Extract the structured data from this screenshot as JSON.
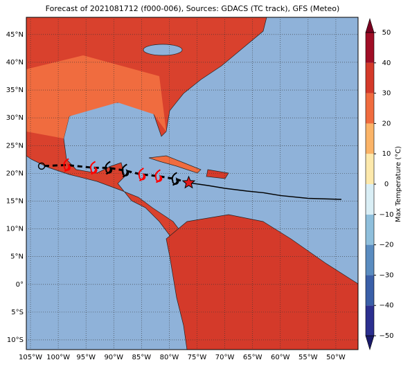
{
  "title": "Forecast of 2021081712 (f000-006), Sources: GDACS (TC track), GFS (Meteo)",
  "map": {
    "xlim": [
      -105.75,
      -46
    ],
    "ylim": [
      -11.75,
      48.1
    ],
    "xticks": [
      {
        "value": -105,
        "label": "105°W"
      },
      {
        "value": -100,
        "label": "100°W"
      },
      {
        "value": -95,
        "label": "95°W"
      },
      {
        "value": -90,
        "label": "90°W"
      },
      {
        "value": -85,
        "label": "85°W"
      },
      {
        "value": -80,
        "label": "80°W"
      },
      {
        "value": -75,
        "label": "75°W"
      },
      {
        "value": -70,
        "label": "70°W"
      },
      {
        "value": -65,
        "label": "65°W"
      },
      {
        "value": -60,
        "label": "60°W"
      },
      {
        "value": -55,
        "label": "55°W"
      },
      {
        "value": -50,
        "label": "50°W"
      }
    ],
    "yticks": [
      {
        "value": 45,
        "label": "45°N"
      },
      {
        "value": 40,
        "label": "40°N"
      },
      {
        "value": 35,
        "label": "35°N"
      },
      {
        "value": 30,
        "label": "30°N"
      },
      {
        "value": 25,
        "label": "25°N"
      },
      {
        "value": 20,
        "label": "20°N"
      },
      {
        "value": 15,
        "label": "15°N"
      },
      {
        "value": 10,
        "label": "10°N"
      },
      {
        "value": 5,
        "label": "5°N"
      },
      {
        "value": 0,
        "label": "0°"
      },
      {
        "value": -5,
        "label": "5°S"
      },
      {
        "value": -10,
        "label": "10°S"
      }
    ]
  },
  "track": {
    "past": {
      "lon": [
        -49,
        -55,
        -60,
        -63,
        -66,
        -70,
        -73,
        -76.5
      ],
      "lat": [
        15.3,
        15.5,
        16,
        16.5,
        16.8,
        17.3,
        17.8,
        18.3
      ]
    },
    "forecast": {
      "lon": [
        -76.5,
        -79,
        -82,
        -85,
        -88,
        -91,
        -93.7,
        -98.5,
        -103
      ],
      "lat": [
        18.3,
        19,
        19.5,
        19.8,
        20.5,
        21,
        21,
        21.5,
        21.3
      ],
      "colors": [
        "#000000",
        "#000000",
        "#ff0000",
        "#ff0000",
        "#000000",
        "#000000",
        "#ff0000",
        "#ff0000",
        "#000000"
      ]
    }
  },
  "colorbar": {
    "label": "Max Temperature (°C)",
    "lim": [
      -50,
      50
    ],
    "ticks": [
      {
        "value": -50,
        "label": "−50"
      },
      {
        "value": -40,
        "label": "−40"
      },
      {
        "value": -30,
        "label": "−30"
      },
      {
        "value": -20,
        "label": "−20"
      },
      {
        "value": -10,
        "label": "−10"
      },
      0,
      10,
      20,
      30,
      40,
      50
    ],
    "colors": [
      "#2b2f8f",
      "#3a5fa8",
      "#5a8cc0",
      "#8fbfdc",
      "#d9eef5",
      "#fde9ac",
      "#fbb468",
      "#f06c3f",
      "#d43a2a",
      "#a00e26"
    ],
    "under": "#1a1a6a",
    "over": "#7a0020"
  }
}
